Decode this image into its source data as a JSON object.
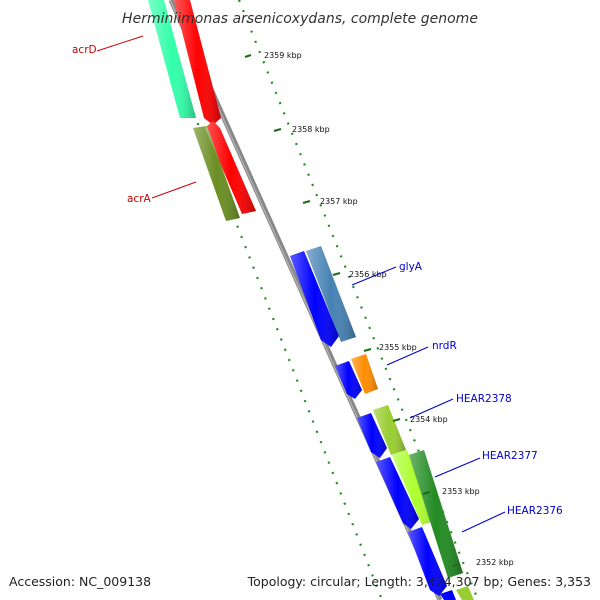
{
  "title": "Herminiimonas arsenicoxydans, complete genome",
  "footer": {
    "accession": "Accession: NC_009138",
    "topology": "Topology: circular; Length: 3,424,307 bp; Genes: 3,353"
  },
  "ticks": [
    "2359 kbp",
    "2358 kbp",
    "2357 kbp",
    "2356 kbp",
    "2355 kbp",
    "2354 kbp",
    "2353 kbp",
    "2352 kbp"
  ],
  "gene_labels": [
    "acrD",
    "acrA",
    "glyA",
    "nrdR",
    "HEAR2378",
    "HEAR2377",
    "HEAR2376"
  ],
  "colors": {
    "reverse_label": "#cc0000",
    "forward_label": "#0000cc",
    "acrD": "#ff0000",
    "acrD_cog": "#33ffaa",
    "acrA": "#ff0000",
    "acrA_cog": "#6b8e23",
    "glyA": "#0000ff",
    "glyA_cog": "#4682b4",
    "nrdR": "#0000ff",
    "nrdR_cog": "#ff8c00",
    "HEAR2378": "#0000ff",
    "HEAR2378_cog": "#9acd32",
    "HEAR2377": "#0000ff",
    "HEAR2377_cog": "#adff2f",
    "HEAR2376": "#0000ff",
    "HEAR2376_cog": "#228b22",
    "backbone": "#888888",
    "gc_track": "#228b22"
  }
}
